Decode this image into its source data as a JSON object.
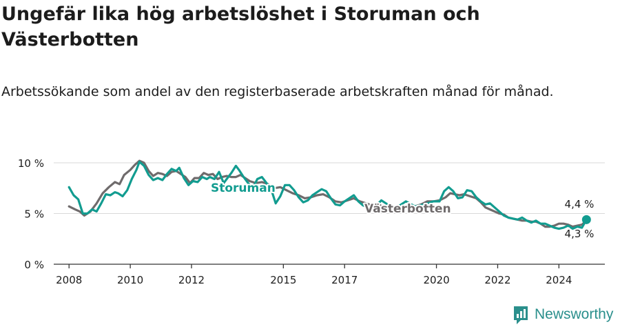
{
  "title": "Ungefär lika hög arbetslöshet i Storuman och Västerbotten",
  "subtitle": "Arbetssökande som andel av den registerbaserade arbetskraften månad för månad.",
  "brand": "Newsworthy",
  "colors": {
    "storuman": "#129c90",
    "vasterbotten": "#6f6b6c",
    "text": "#1c1c1c",
    "grid": "#d9d9d9",
    "brand": "#2a8f8c"
  },
  "chart_data": {
    "type": "line",
    "x_unit": "year",
    "xlim": [
      2007.5,
      2025.5
    ],
    "ylim": [
      0,
      10
    ],
    "y_ticks": [
      {
        "value": 0,
        "label": "0 %"
      },
      {
        "value": 5,
        "label": "5 %"
      },
      {
        "value": 10,
        "label": "10 %"
      }
    ],
    "x_ticks": [
      {
        "value": 2008,
        "label": "2008"
      },
      {
        "value": 2010,
        "label": "2010"
      },
      {
        "value": 2012,
        "label": "2012"
      },
      {
        "value": 2015,
        "label": "2015"
      },
      {
        "value": 2017,
        "label": "2017"
      },
      {
        "value": 2020,
        "label": "2020"
      },
      {
        "value": 2022,
        "label": "2022"
      },
      {
        "value": 2024,
        "label": "2024"
      }
    ],
    "grid": true,
    "series": [
      {
        "name": "Storuman",
        "end_label": "4,4 %",
        "points": [
          [
            2008.0,
            7.6
          ],
          [
            2008.15,
            6.8
          ],
          [
            2008.3,
            6.4
          ],
          [
            2008.45,
            5.0
          ],
          [
            2008.6,
            5.0
          ],
          [
            2008.75,
            5.4
          ],
          [
            2008.9,
            5.2
          ],
          [
            2009.05,
            6.0
          ],
          [
            2009.2,
            6.9
          ],
          [
            2009.35,
            6.8
          ],
          [
            2009.5,
            7.1
          ],
          [
            2009.6,
            7.0
          ],
          [
            2009.75,
            6.7
          ],
          [
            2009.9,
            7.3
          ],
          [
            2010.05,
            8.4
          ],
          [
            2010.2,
            9.3
          ],
          [
            2010.3,
            10.1
          ],
          [
            2010.45,
            9.7
          ],
          [
            2010.6,
            8.8
          ],
          [
            2010.75,
            8.3
          ],
          [
            2010.9,
            8.5
          ],
          [
            2011.05,
            8.3
          ],
          [
            2011.2,
            8.9
          ],
          [
            2011.35,
            9.4
          ],
          [
            2011.5,
            9.2
          ],
          [
            2011.6,
            9.5
          ],
          [
            2011.75,
            8.5
          ],
          [
            2011.9,
            7.8
          ],
          [
            2012.05,
            8.2
          ],
          [
            2012.2,
            8.1
          ],
          [
            2012.35,
            8.6
          ],
          [
            2012.5,
            8.4
          ],
          [
            2012.6,
            8.6
          ],
          [
            2012.75,
            8.4
          ],
          [
            2012.9,
            9.1
          ],
          [
            2013.05,
            8.0
          ],
          [
            2013.15,
            8.4
          ],
          [
            2013.3,
            9.0
          ],
          [
            2013.45,
            9.7
          ],
          [
            2013.55,
            9.3
          ],
          [
            2013.7,
            8.6
          ],
          [
            2013.85,
            8.0
          ],
          [
            2014.0,
            7.5
          ],
          [
            2014.15,
            8.4
          ],
          [
            2014.3,
            8.6
          ],
          [
            2014.45,
            8.0
          ],
          [
            2014.6,
            7.4
          ],
          [
            2014.75,
            6.0
          ],
          [
            2014.9,
            6.7
          ],
          [
            2015.05,
            7.8
          ],
          [
            2015.2,
            7.8
          ],
          [
            2015.35,
            7.3
          ],
          [
            2015.5,
            6.6
          ],
          [
            2015.65,
            6.1
          ],
          [
            2015.8,
            6.3
          ],
          [
            2015.95,
            6.8
          ],
          [
            2016.1,
            7.1
          ],
          [
            2016.25,
            7.4
          ],
          [
            2016.4,
            7.2
          ],
          [
            2016.55,
            6.5
          ],
          [
            2016.7,
            5.9
          ],
          [
            2016.85,
            5.8
          ],
          [
            2017.0,
            6.2
          ],
          [
            2017.15,
            6.5
          ],
          [
            2017.3,
            6.8
          ],
          [
            2017.45,
            6.2
          ],
          [
            2017.6,
            5.8
          ],
          [
            2017.75,
            5.6
          ],
          [
            2017.95,
            5.5
          ],
          [
            2018.2,
            6.3
          ],
          [
            2018.45,
            5.8
          ],
          [
            2018.7,
            5.6
          ],
          [
            2019.0,
            6.2
          ],
          [
            2019.3,
            5.7
          ],
          [
            2019.6,
            5.9
          ],
          [
            2019.9,
            6.2
          ],
          [
            2020.1,
            6.2
          ],
          [
            2020.25,
            7.2
          ],
          [
            2020.4,
            7.6
          ],
          [
            2020.55,
            7.2
          ],
          [
            2020.7,
            6.5
          ],
          [
            2020.85,
            6.6
          ],
          [
            2021.0,
            7.3
          ],
          [
            2021.15,
            7.2
          ],
          [
            2021.3,
            6.6
          ],
          [
            2021.45,
            6.2
          ],
          [
            2021.6,
            5.9
          ],
          [
            2021.75,
            6.0
          ],
          [
            2021.9,
            5.6
          ],
          [
            2022.05,
            5.2
          ],
          [
            2022.2,
            4.8
          ],
          [
            2022.35,
            4.6
          ],
          [
            2022.5,
            4.5
          ],
          [
            2022.65,
            4.4
          ],
          [
            2022.8,
            4.6
          ],
          [
            2022.95,
            4.3
          ],
          [
            2023.1,
            4.1
          ],
          [
            2023.25,
            4.3
          ],
          [
            2023.4,
            4.0
          ],
          [
            2023.55,
            4.0
          ],
          [
            2023.7,
            3.8
          ],
          [
            2023.85,
            3.6
          ],
          [
            2024.0,
            3.5
          ],
          [
            2024.15,
            3.6
          ],
          [
            2024.3,
            3.8
          ],
          [
            2024.45,
            3.5
          ],
          [
            2024.6,
            3.7
          ],
          [
            2024.75,
            3.6
          ],
          [
            2024.9,
            4.4
          ]
        ]
      },
      {
        "name": "Västerbotten",
        "end_label": "4,3 %",
        "points": [
          [
            2008.0,
            5.7
          ],
          [
            2008.2,
            5.4
          ],
          [
            2008.35,
            5.2
          ],
          [
            2008.5,
            4.8
          ],
          [
            2008.7,
            5.2
          ],
          [
            2008.9,
            6.0
          ],
          [
            2009.1,
            7.0
          ],
          [
            2009.3,
            7.6
          ],
          [
            2009.5,
            8.1
          ],
          [
            2009.65,
            7.9
          ],
          [
            2009.8,
            8.8
          ],
          [
            2010.0,
            9.3
          ],
          [
            2010.15,
            9.8
          ],
          [
            2010.3,
            10.2
          ],
          [
            2010.45,
            10.0
          ],
          [
            2010.6,
            9.2
          ],
          [
            2010.75,
            8.7
          ],
          [
            2010.9,
            9.0
          ],
          [
            2011.05,
            8.9
          ],
          [
            2011.2,
            8.7
          ],
          [
            2011.35,
            9.1
          ],
          [
            2011.5,
            9.2
          ],
          [
            2011.65,
            8.9
          ],
          [
            2011.8,
            8.6
          ],
          [
            2011.95,
            8.0
          ],
          [
            2012.1,
            8.5
          ],
          [
            2012.25,
            8.5
          ],
          [
            2012.4,
            9.0
          ],
          [
            2012.55,
            8.8
          ],
          [
            2012.7,
            8.9
          ],
          [
            2012.85,
            8.4
          ],
          [
            2013.0,
            8.6
          ],
          [
            2013.15,
            8.7
          ],
          [
            2013.3,
            8.6
          ],
          [
            2013.45,
            8.6
          ],
          [
            2013.6,
            8.8
          ],
          [
            2013.75,
            8.5
          ],
          [
            2013.9,
            8.2
          ],
          [
            2014.1,
            8.0
          ],
          [
            2014.3,
            8.1
          ],
          [
            2014.5,
            7.9
          ],
          [
            2014.7,
            7.5
          ],
          [
            2014.9,
            7.6
          ],
          [
            2015.1,
            7.3
          ],
          [
            2015.3,
            7.0
          ],
          [
            2015.5,
            6.8
          ],
          [
            2015.7,
            6.5
          ],
          [
            2015.9,
            6.6
          ],
          [
            2016.1,
            6.8
          ],
          [
            2016.3,
            6.9
          ],
          [
            2016.5,
            6.6
          ],
          [
            2016.7,
            6.2
          ],
          [
            2016.9,
            6.1
          ],
          [
            2017.1,
            6.3
          ],
          [
            2017.3,
            6.5
          ],
          [
            2017.5,
            6.2
          ],
          [
            2017.7,
            6.0
          ],
          [
            2017.9,
            5.8
          ],
          [
            2018.1,
            5.9
          ],
          [
            2018.3,
            5.6
          ],
          [
            2018.5,
            5.5
          ],
          [
            2018.7,
            5.6
          ],
          [
            2018.9,
            5.5
          ],
          [
            2019.1,
            5.6
          ],
          [
            2019.3,
            5.7
          ],
          [
            2019.5,
            5.9
          ],
          [
            2019.7,
            6.2
          ],
          [
            2019.9,
            6.2
          ],
          [
            2020.1,
            6.3
          ],
          [
            2020.3,
            6.6
          ],
          [
            2020.45,
            7.0
          ],
          [
            2020.6,
            6.9
          ],
          [
            2020.75,
            6.8
          ],
          [
            2020.9,
            6.9
          ],
          [
            2021.1,
            6.7
          ],
          [
            2021.3,
            6.5
          ],
          [
            2021.45,
            6.1
          ],
          [
            2021.6,
            5.6
          ],
          [
            2021.75,
            5.4
          ],
          [
            2021.9,
            5.2
          ],
          [
            2022.05,
            5.0
          ],
          [
            2022.2,
            4.9
          ],
          [
            2022.35,
            4.6
          ],
          [
            2022.5,
            4.5
          ],
          [
            2022.65,
            4.4
          ],
          [
            2022.8,
            4.3
          ],
          [
            2022.95,
            4.3
          ],
          [
            2023.1,
            4.2
          ],
          [
            2023.25,
            4.2
          ],
          [
            2023.4,
            4.0
          ],
          [
            2023.55,
            3.7
          ],
          [
            2023.7,
            3.7
          ],
          [
            2023.85,
            3.8
          ],
          [
            2024.0,
            4.0
          ],
          [
            2024.15,
            4.0
          ],
          [
            2024.3,
            3.9
          ],
          [
            2024.45,
            3.7
          ],
          [
            2024.6,
            3.8
          ],
          [
            2024.75,
            3.9
          ],
          [
            2024.9,
            4.3
          ]
        ]
      }
    ]
  }
}
